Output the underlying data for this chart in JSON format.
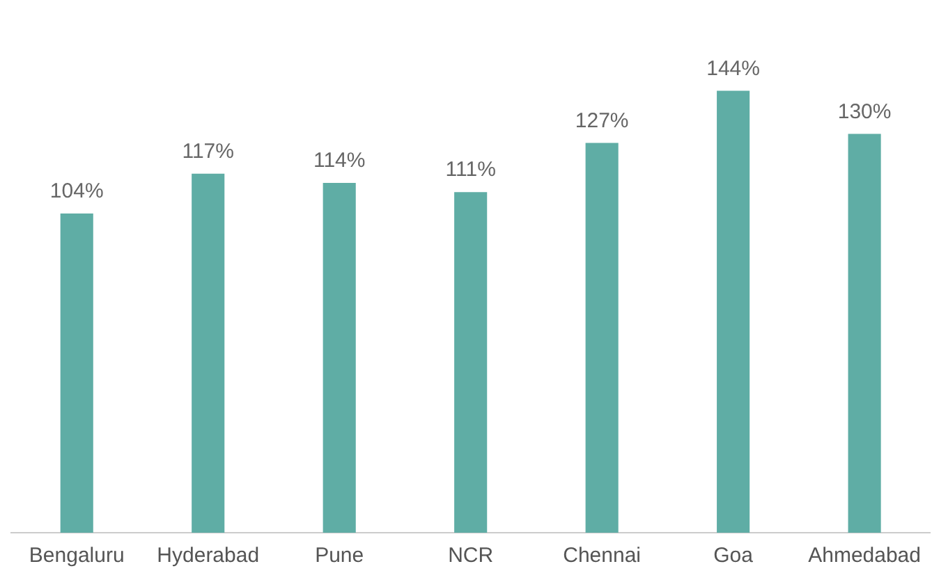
{
  "chart_data": {
    "type": "bar",
    "categories": [
      "Bengaluru",
      "Hyderabad",
      "Pune",
      "NCR",
      "Chennai",
      "Goa",
      "Ahmedabad"
    ],
    "values": [
      104,
      117,
      114,
      111,
      127,
      144,
      130
    ],
    "value_labels": [
      "104%",
      "117%",
      "114%",
      "111%",
      "127%",
      "144%",
      "130%"
    ],
    "color": "#5fada5",
    "grid": false,
    "legend": false
  }
}
